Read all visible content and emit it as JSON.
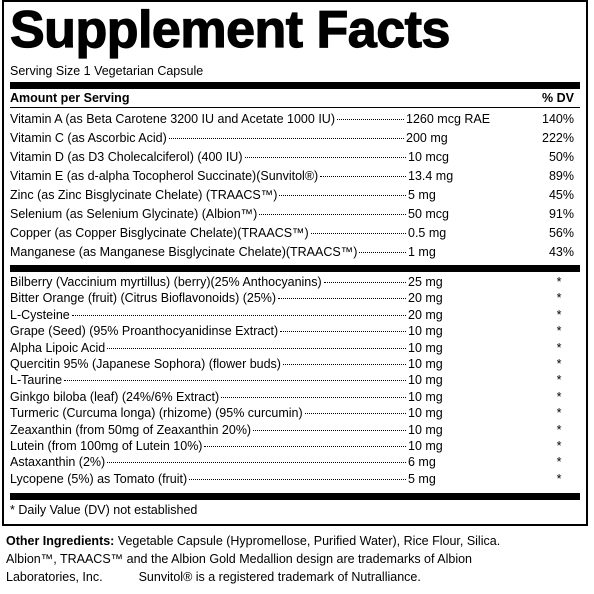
{
  "title": "Supplement Facts",
  "serving_size": "Serving Size 1 Vegetarian Capsule",
  "header": {
    "amount": "Amount per Serving",
    "dv": "% DV"
  },
  "vitamins": [
    {
      "name": "Vitamin A (as Beta Carotene 3200 IU and Acetate 1000 IU)",
      "amount": "1260 mcg RAE",
      "dv": "140%"
    },
    {
      "name": "Vitamin C (as Ascorbic Acid)",
      "amount": "200 mg",
      "dv": "222%"
    },
    {
      "name": "Vitamin D (as D3 Cholecalciferol) (400 IU)",
      "amount": "10 mcg",
      "dv": "50%"
    },
    {
      "name": "Vitamin E (as d-alpha Tocopherol Succinate)(Sunvitol®)",
      "amount": "13.4 mg",
      "dv": "89%"
    },
    {
      "name": "Zinc (as Zinc Bisglycinate Chelate) (TRAACS™)",
      "amount": "5 mg",
      "dv": "45%"
    },
    {
      "name": "Selenium (as Selenium Glycinate) (Albion™)",
      "amount": "50 mcg",
      "dv": "91%"
    },
    {
      "name": "Copper (as Copper Bisglycinate Chelate)(TRAACS™)",
      "amount": "0.5 mg",
      "dv": "56%"
    },
    {
      "name": "Manganese (as Manganese Bisglycinate Chelate)(TRAACS™)",
      "amount": "1 mg",
      "dv": "43%"
    }
  ],
  "botanicals": [
    {
      "name": "Bilberry (Vaccinium myrtillus) (berry)(25% Anthocyanins)",
      "amount": "25 mg",
      "dv": "*"
    },
    {
      "name": "Bitter Orange (fruit) (Citrus Bioflavonoids) (25%)",
      "amount": "20 mg",
      "dv": "*"
    },
    {
      "name": "L-Cysteine",
      "amount": "20 mg",
      "dv": "*"
    },
    {
      "name": "Grape (Seed) (95% Proanthocyanidinse Extract)",
      "amount": "10 mg",
      "dv": "*"
    },
    {
      "name": "Alpha Lipoic Acid",
      "amount": "10 mg",
      "dv": "*"
    },
    {
      "name": "Quercitin 95% (Japanese Sophora) (flower buds)",
      "amount": "10 mg",
      "dv": "*"
    },
    {
      "name": "L-Taurine",
      "amount": "10 mg",
      "dv": "*"
    },
    {
      "name": "Ginkgo biloba (leaf)  (24%/6% Extract)",
      "amount": "10 mg",
      "dv": "*"
    },
    {
      "name": "Turmeric (Curcuma longa) (rhizome) (95% curcumin)",
      "amount": "10 mg",
      "dv": "*"
    },
    {
      "name": "Zeaxanthin (from 50mg of Zeaxanthin 20%)",
      "amount": "10 mg",
      "dv": "*"
    },
    {
      "name": "Lutein (from 100mg of Lutein 10%)",
      "amount": "10 mg",
      "dv": "*"
    },
    {
      "name": "Astaxanthin (2%)",
      "amount": "6 mg",
      "dv": "*"
    },
    {
      "name": "Lycopene (5%) as Tomato (fruit)",
      "amount": "5 mg",
      "dv": "*"
    }
  ],
  "footnote": "* Daily Value (DV) not established",
  "other_ingredients": {
    "label": "Other Ingredients:",
    "text": "Vegetable Capsule (Hypromellose, Purified Water), Rice Flour, Silica."
  },
  "trademarks": [
    "Albion™, TRAACS™ and the Albion Gold Medallion design are trademarks of Albion",
    "Laboratories, Inc.",
    "Sunvitol® is a registered trademark of Nutralliance."
  ]
}
